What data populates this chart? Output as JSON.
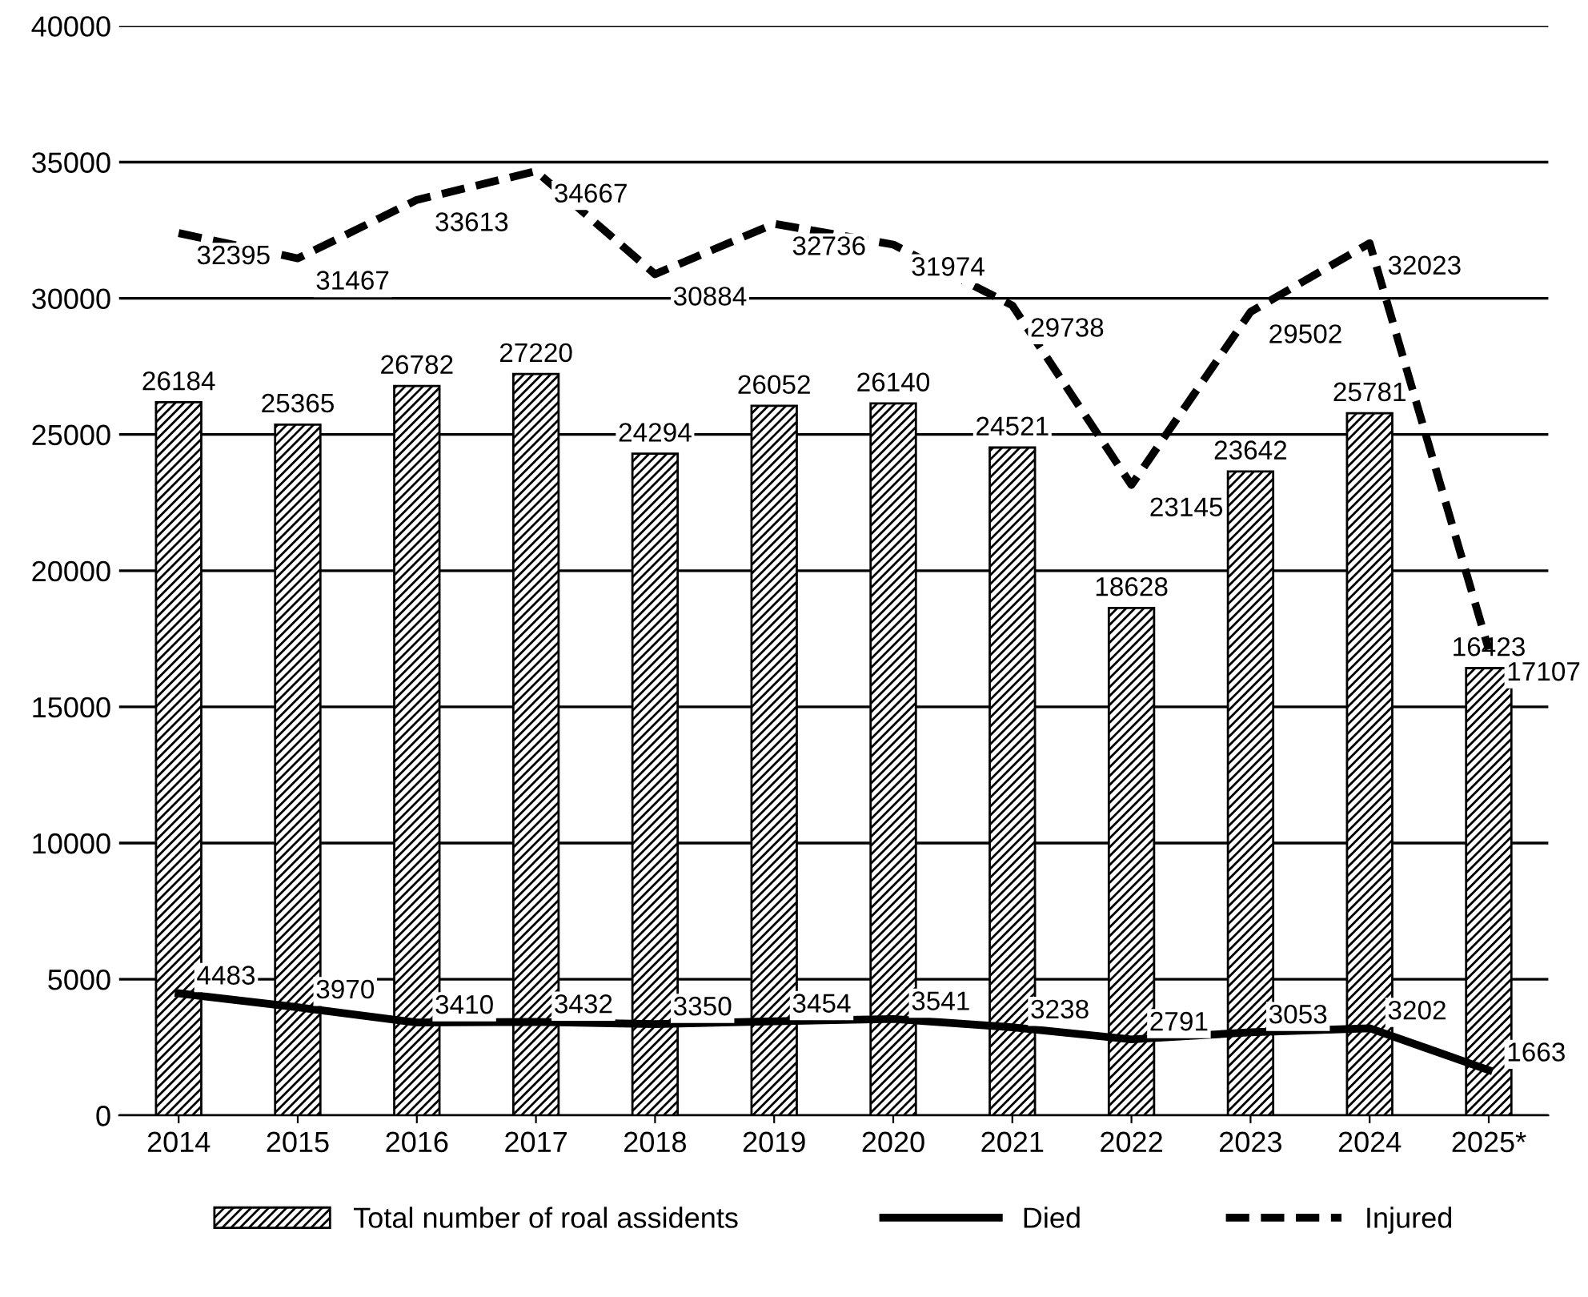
{
  "chart_data": {
    "type": "bar",
    "categories": [
      "2014",
      "2015",
      "2016",
      "2017",
      "2018",
      "2019",
      "2020",
      "2021",
      "2022",
      "2023",
      "2024",
      "2025*"
    ],
    "series": [
      {
        "name": "Total number of roal assidents",
        "color": "#000000",
        "values": [
          26184,
          25365,
          26782,
          27220,
          24294,
          26052,
          26140,
          24521,
          18628,
          23642,
          25781,
          16423
        ]
      },
      {
        "name": "Died",
        "type": "line",
        "line_style": "solid",
        "color": "#000000",
        "values": [
          4483,
          3970,
          3410,
          3432,
          3350,
          3454,
          3541,
          3238,
          2791,
          3053,
          3202,
          1663
        ]
      },
      {
        "name": "Injured",
        "type": "line",
        "line_style": "dashed",
        "color": "#000000",
        "values": [
          32395,
          31467,
          33613,
          34667,
          30884,
          32736,
          31974,
          29738,
          23145,
          29502,
          32023,
          17107
        ]
      }
    ],
    "ylim": [
      0,
      40000
    ],
    "yticks": [
      0,
      5000,
      10000,
      15000,
      20000,
      25000,
      30000,
      35000,
      40000
    ],
    "grid": "y",
    "legend": "bottom",
    "data_labels": true
  }
}
